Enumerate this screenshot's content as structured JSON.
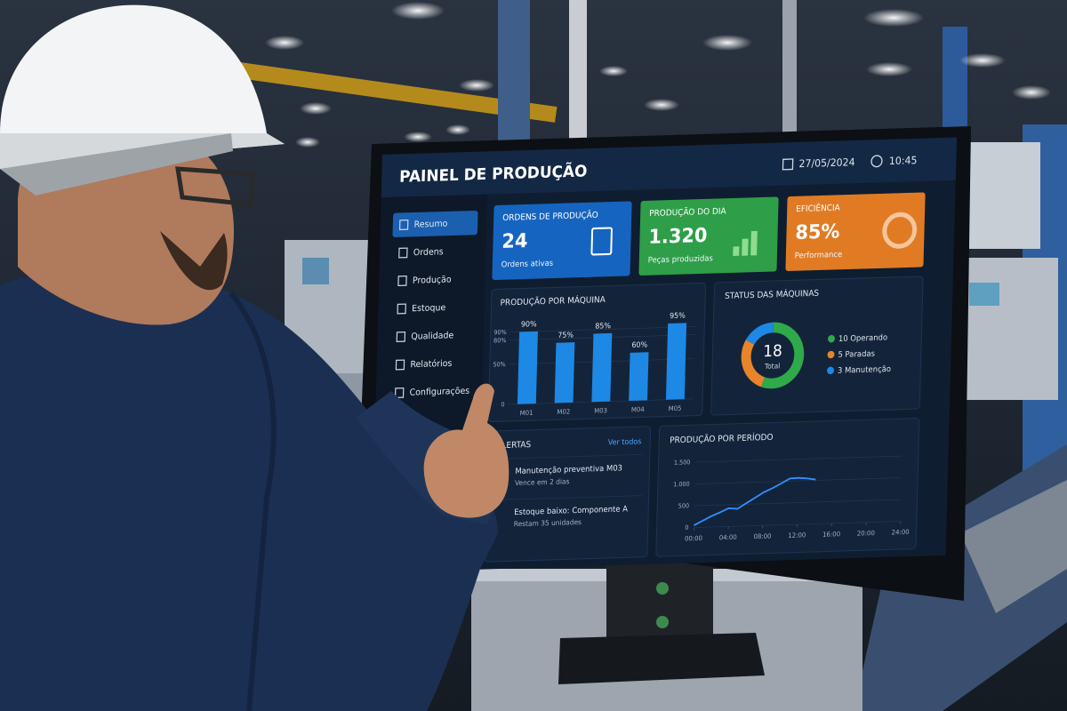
{
  "header": {
    "title": "PAINEL DE PRODUÇÃO",
    "date": "27/05/2024",
    "time": "10:45"
  },
  "sidebar": [
    "Resumo",
    "Ordens",
    "Produção",
    "Estoque",
    "Qualidade",
    "Relatórios",
    "Configurações"
  ],
  "kpis": [
    {
      "title": "ORDENS DE PRODUÇÃO",
      "value": "24",
      "caption": "Ordens ativas"
    },
    {
      "title": "PRODUÇÃO DO DIA",
      "value": "1.320",
      "caption": "Peças produzidas"
    },
    {
      "title": "EFICIÊNCIA",
      "value": "85%",
      "caption": "Performance"
    }
  ],
  "alerts": {
    "title": "ALERTAS",
    "link": "Ver todos",
    "items": [
      {
        "title": "Manutenção preventiva M03",
        "detail": "Vence em 2 dias"
      },
      {
        "title": "Estoque baixo: Componente A",
        "detail": "Restam 35 unidades"
      }
    ]
  },
  "chart_data": [
    {
      "type": "bar",
      "title": "PRODUÇÃO POR MÁQUINA",
      "categories": [
        "M01",
        "M02",
        "M03",
        "M04",
        "M05"
      ],
      "values": [
        90,
        75,
        85,
        60,
        95
      ],
      "value_labels": [
        "90%",
        "75%",
        "85%",
        "60%",
        "95%"
      ],
      "color": "#1e88e5",
      "ylim": [
        0,
        100
      ],
      "yticks": [
        0,
        {
          "value": 50,
          "label": "50%"
        },
        {
          "value": 80,
          "label": "80%"
        },
        {
          "value": 90,
          "label": "90%"
        }
      ],
      "grid": true
    },
    {
      "type": "donut",
      "title": "STATUS DAS MÁQUINAS",
      "categories": [
        "Operando",
        "Paradas",
        "Manutenção"
      ],
      "values": [
        10,
        5,
        3
      ],
      "colors": [
        "#2eaa4a",
        "#e8842a",
        "#1e88e5"
      ],
      "total": 18,
      "total_label": "Total"
    },
    {
      "type": "line",
      "title": "PRODUÇÃO POR PERÍODO",
      "x": [
        0,
        1,
        2,
        3,
        4,
        5,
        6,
        7,
        8,
        9,
        10,
        11,
        12,
        13,
        14
      ],
      "series": [
        {
          "values": [
            50,
            150,
            250,
            330,
            420,
            400,
            520,
            640,
            760,
            850,
            950,
            1060,
            1070,
            1050,
            1020
          ],
          "color": "#2f8fff"
        }
      ],
      "xlim": [
        0,
        24
      ],
      "xticks": [
        {
          "value": 0,
          "label": "00:00"
        },
        {
          "value": 4,
          "label": "04:00"
        },
        {
          "value": 8,
          "label": "08:00"
        },
        {
          "value": 12,
          "label": "12:00"
        },
        {
          "value": 16,
          "label": "16:00"
        },
        {
          "value": 20,
          "label": "20:00"
        },
        {
          "value": 24,
          "label": "24:00"
        }
      ],
      "ylim": [
        0,
        1500
      ],
      "yticks": [
        0,
        500,
        {
          "value": 1000,
          "label": "1.000"
        },
        {
          "value": 1500,
          "label": "1.500"
        }
      ],
      "grid": true
    }
  ]
}
